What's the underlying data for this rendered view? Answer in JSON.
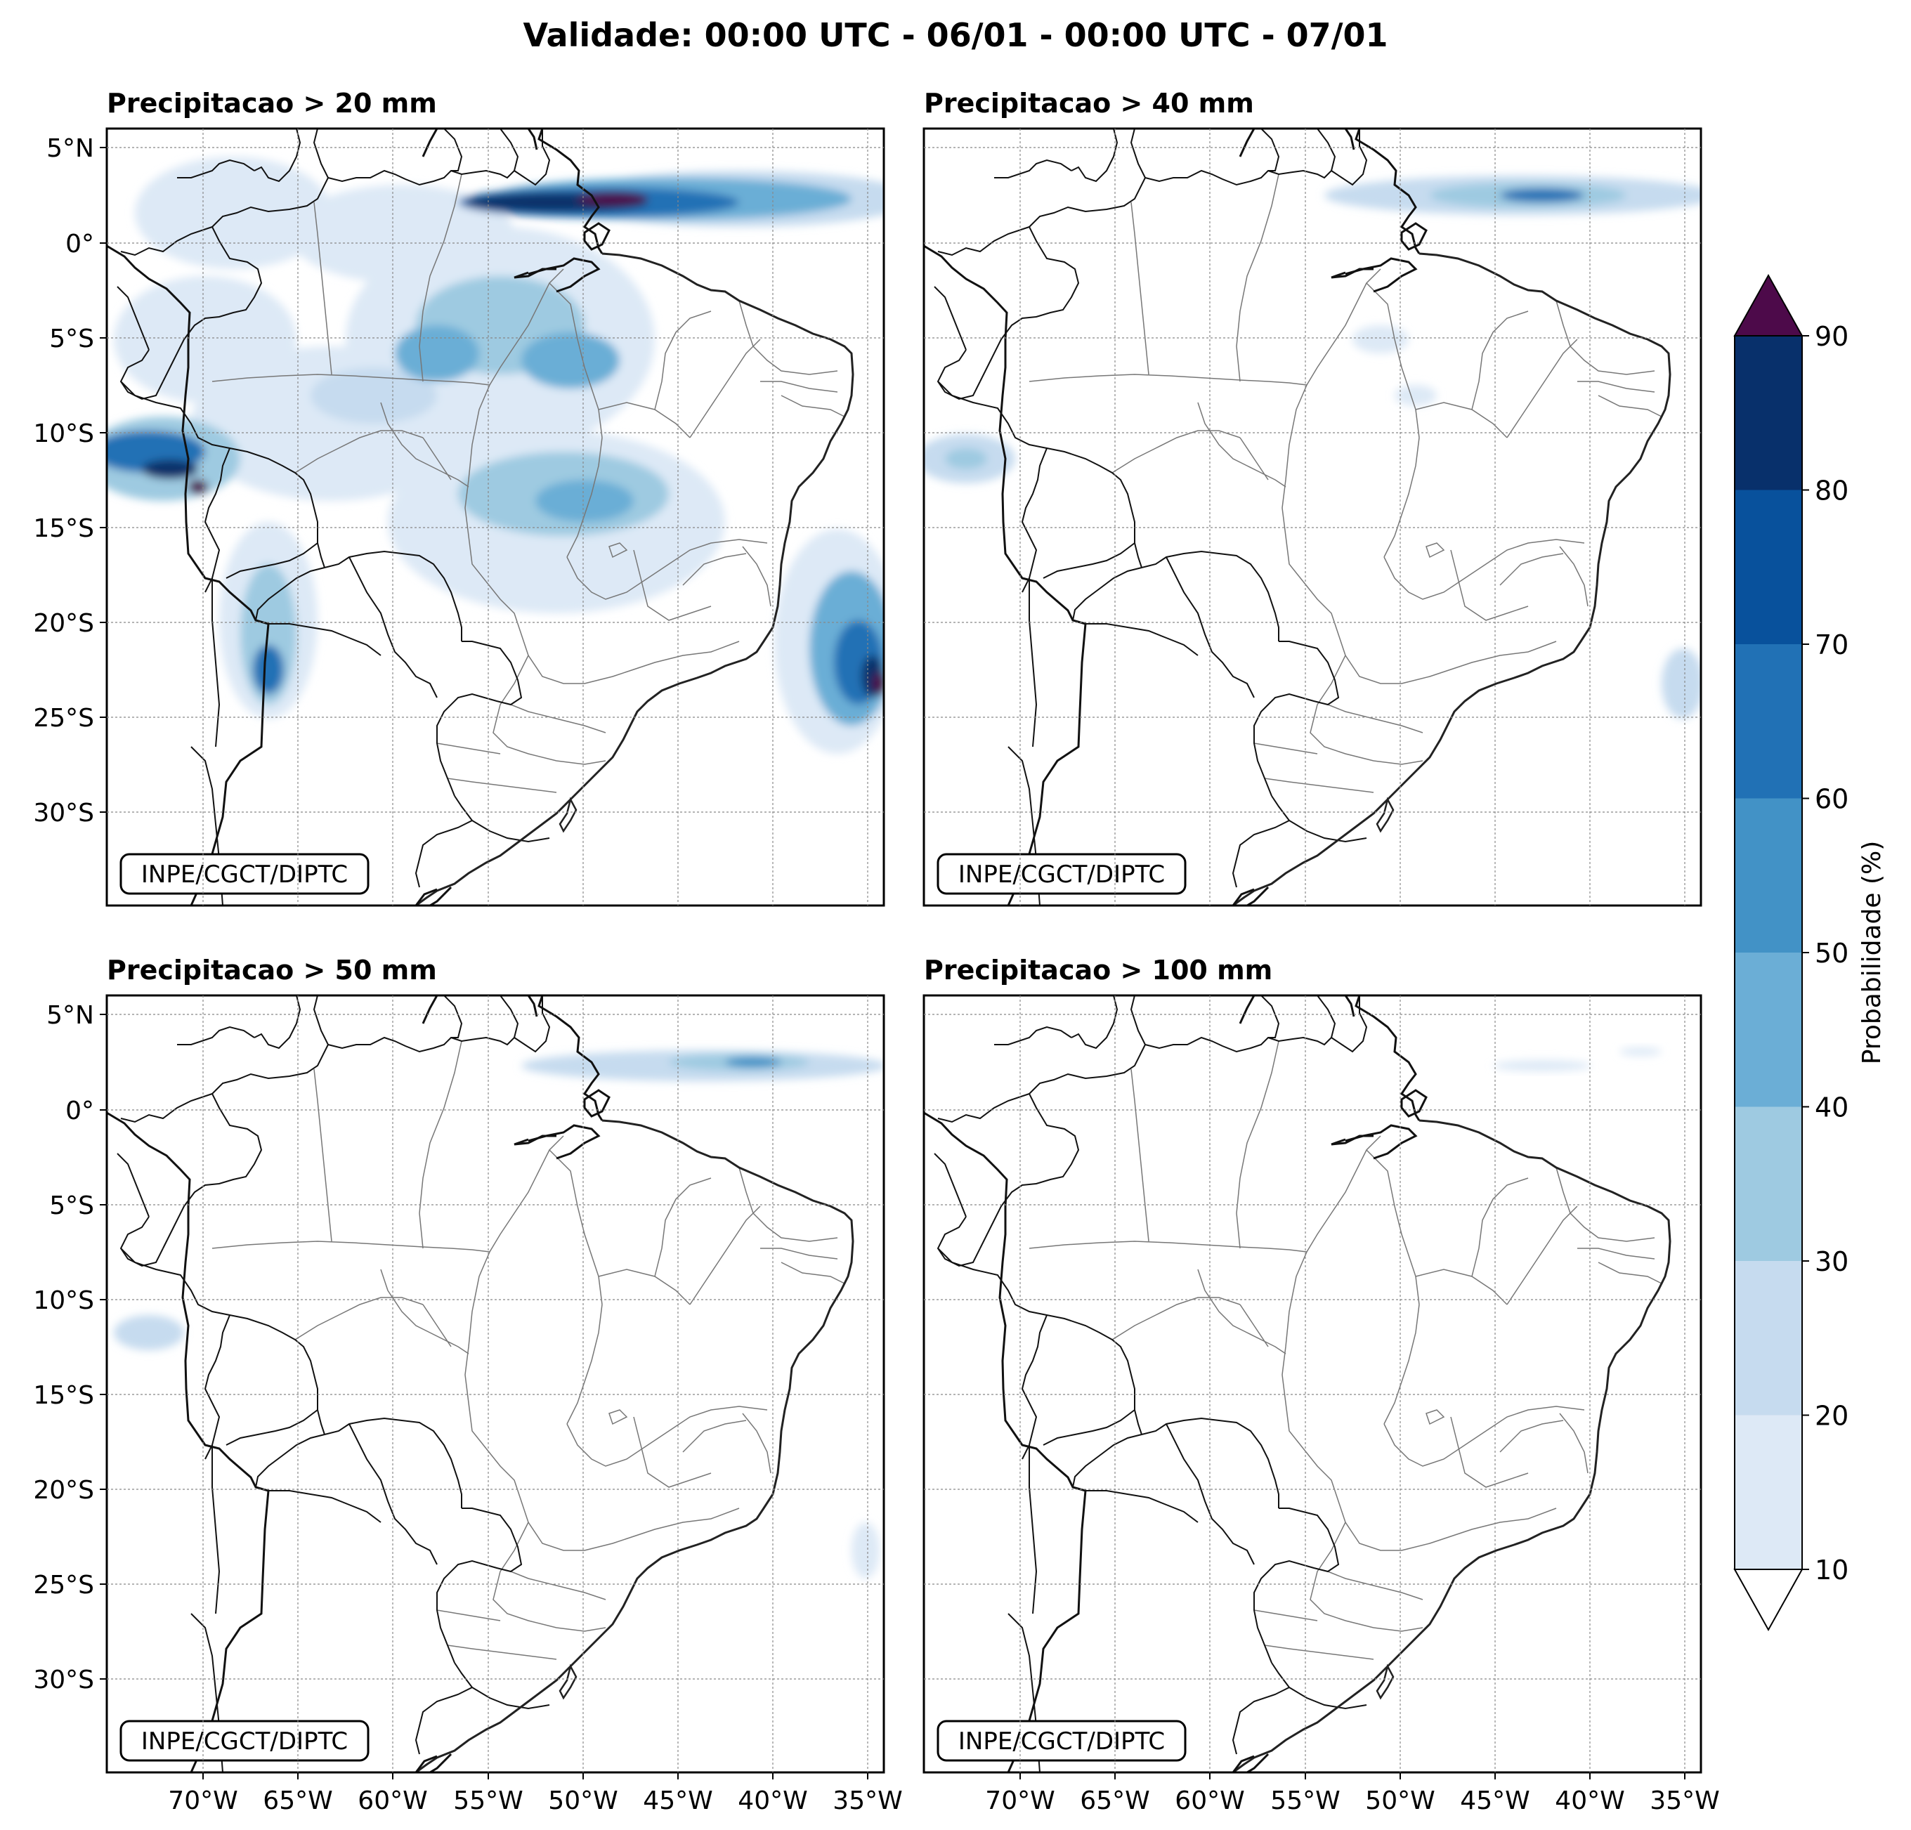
{
  "title": "Validade: 00:00 UTC - 06/01 - 00:00 UTC - 07/01",
  "credit": "INPE/CGCT/DIPTC",
  "panels": [
    {
      "title": "Precipitacao > 20 mm"
    },
    {
      "title": "Precipitacao > 40 mm"
    },
    {
      "title": "Precipitacao > 50 mm"
    },
    {
      "title": "Precipitacao > 100 mm"
    }
  ],
  "lat_ticks": [
    "5°N",
    "0°",
    "5°S",
    "10°S",
    "15°S",
    "20°S",
    "25°S",
    "30°S"
  ],
  "lon_ticks": [
    "70°W",
    "65°W",
    "60°W",
    "55°W",
    "50°W",
    "45°W",
    "40°W",
    "35°W"
  ],
  "colorbar": {
    "label": "Probabilidade (%)",
    "ticks": [
      "10",
      "20",
      "30",
      "40",
      "50",
      "60",
      "70",
      "80",
      "90"
    ],
    "colors": [
      "#dde9f6",
      "#c6dbef",
      "#9ecae1",
      "#6baed6",
      "#4292c6",
      "#2171b5",
      "#08519c",
      "#08306b"
    ],
    "over_color": "#4d0a4a",
    "under_color": "#ffffff"
  }
}
